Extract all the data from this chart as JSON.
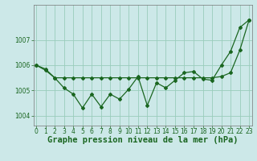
{
  "title": "Graphe pression niveau de la mer (hPa)",
  "background_color": "#cce8e8",
  "plot_background": "#cce8e8",
  "grid_color": "#99ccbb",
  "line_color": "#1a6620",
  "x_labels": [
    "0",
    "1",
    "2",
    "3",
    "4",
    "5",
    "6",
    "7",
    "8",
    "9",
    "10",
    "11",
    "12",
    "13",
    "14",
    "15",
    "16",
    "17",
    "18",
    "19",
    "20",
    "21",
    "22",
    "23"
  ],
  "series1_y": [
    1006.0,
    1005.8,
    1005.5,
    1005.1,
    1004.85,
    1004.3,
    1004.85,
    1004.35,
    1004.85,
    1004.65,
    1005.05,
    1005.55,
    1004.4,
    1005.3,
    1005.1,
    1005.4,
    1005.7,
    1005.75,
    1005.45,
    1005.4,
    1006.0,
    1006.55,
    1007.5,
    1007.8
  ],
  "series2_y": [
    1006.0,
    1005.85,
    1005.5,
    1005.5,
    1005.5,
    1005.5,
    1005.5,
    1005.5,
    1005.5,
    1005.5,
    1005.5,
    1005.5,
    1005.5,
    1005.5,
    1005.5,
    1005.5,
    1005.5,
    1005.5,
    1005.5,
    1005.5,
    1005.55,
    1005.7,
    1006.6,
    1007.8
  ],
  "ylim": [
    1003.6,
    1008.4
  ],
  "yticks": [
    1004,
    1005,
    1006,
    1007
  ],
  "xlim": [
    -0.3,
    23.3
  ],
  "title_fontsize": 7.5,
  "tick_fontsize": 5.5,
  "marker": "D",
  "markersize": 2.0,
  "linewidth": 0.9
}
